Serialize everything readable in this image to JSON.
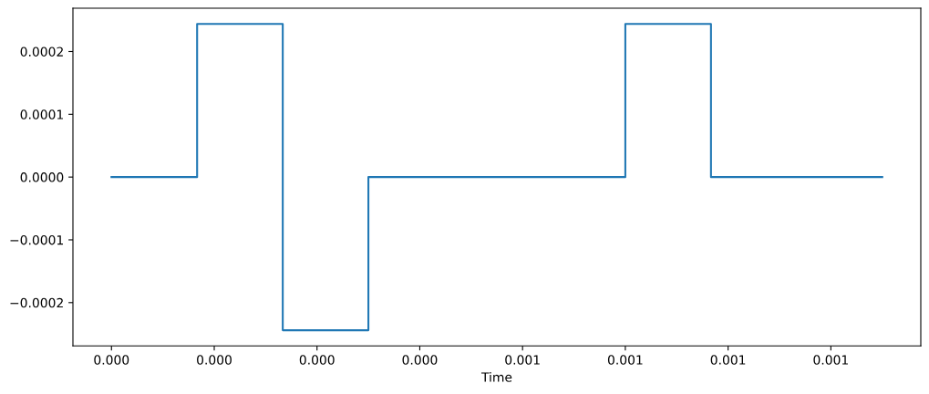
{
  "chart_data": {
    "type": "step",
    "xlabel": "Time",
    "x": [
      0,
      0.000125,
      0.00025,
      0.000375,
      0.0005,
      0.000625,
      0.00075,
      0.000875,
      0.001,
      0.001125
    ],
    "series": [
      {
        "color": "#1f77b4",
        "values": [
          0,
          0.000244,
          -0.000244,
          0,
          0,
          0,
          0.000244,
          0,
          0,
          0
        ]
      }
    ],
    "xlim": [
      -5.625e-05,
      0.00118125
    ],
    "xticks": [
      {
        "value": 0,
        "label": "0.000"
      },
      {
        "value": 0.00015,
        "label": "0.000"
      },
      {
        "value": 0.0003,
        "label": "0.000"
      },
      {
        "value": 0.00045,
        "label": "0.000"
      },
      {
        "value": 0.0006,
        "label": "0.001"
      },
      {
        "value": 0.00075,
        "label": "0.001"
      },
      {
        "value": 0.0009,
        "label": "0.001"
      },
      {
        "value": 0.00105,
        "label": "0.001"
      }
    ],
    "ylim": [
      -0.000269,
      0.000269
    ],
    "yticks": [
      {
        "value": -0.0002,
        "label": "−0.0002"
      },
      {
        "value": -0.0001,
        "label": "−0.0001"
      },
      {
        "value": 0,
        "label": "0.0000"
      },
      0.0001,
      0.0002
    ],
    "grid": false,
    "line_style": "solid"
  }
}
